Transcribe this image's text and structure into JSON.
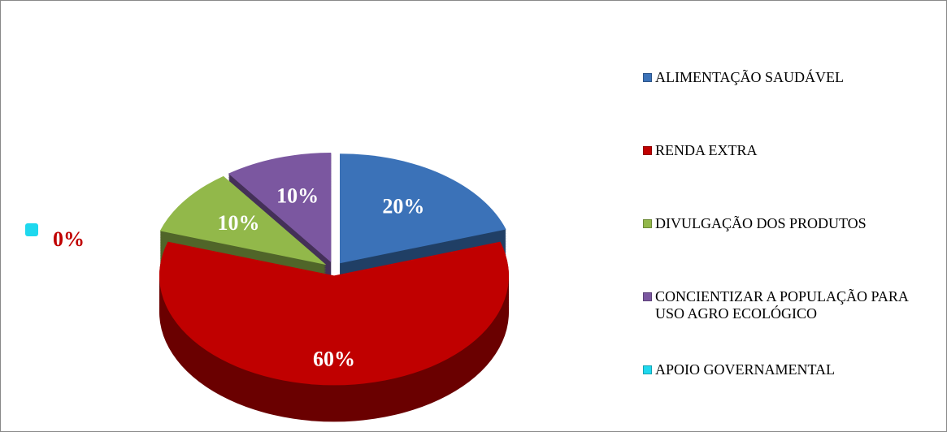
{
  "chart_data": {
    "type": "pie",
    "categories": [
      "ALIMENTAÇÃO SAUDÁVEL",
      "RENDA EXTRA",
      "DIVULGAÇÃO DOS PRODUTOS",
      "CONCIENTIZAR A POPULAÇÃO PARA USO AGRO ECOLÓGICO",
      "APOIO GOVERNAMENTAL"
    ],
    "values": [
      20,
      60,
      10,
      10,
      0
    ],
    "value_labels": [
      "20%",
      "60%",
      "10%",
      "10%",
      "0%"
    ],
    "colors": [
      "#3b72b8",
      "#c00000",
      "#92b84a",
      "#7b57a0",
      "#1ed8ee"
    ],
    "legend": "right"
  }
}
